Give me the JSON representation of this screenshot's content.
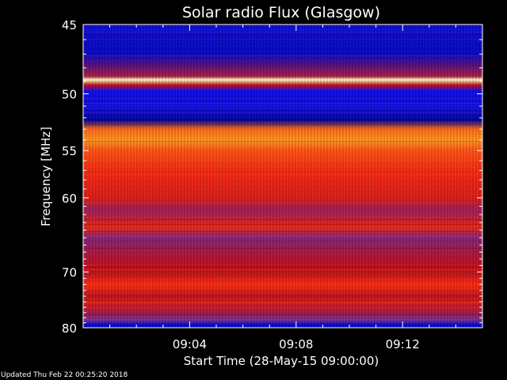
{
  "chart_data": {
    "type": "heatmap",
    "title": "Solar radio Flux (Glasgow)",
    "ylabel": "Frequency [MHz]",
    "xlabel": "Start Time (28-May-15 09:00:00)",
    "ylim": [
      45,
      80
    ],
    "y_scale": "reciprocal",
    "y_ticks": [
      45,
      50,
      55,
      60,
      70,
      80
    ],
    "y_tick_labels": [
      "45",
      "50",
      "55",
      "60",
      "70",
      "80"
    ],
    "x_tick_labels": [
      "09:04",
      "09:08",
      "09:12"
    ],
    "x_ticks_minutes": [
      4,
      8,
      12
    ],
    "xlim_minutes": [
      0,
      15
    ],
    "colormap": [
      "#000066",
      "#1010ff",
      "#7030a0",
      "#c01020",
      "#ff3010",
      "#ffa020",
      "#ffffc0"
    ],
    "band_levels": [
      {
        "mhz": 45.0,
        "level": 0.12
      },
      {
        "mhz": 47.0,
        "level": 0.1
      },
      {
        "mhz": 48.6,
        "level": 0.45
      },
      {
        "mhz": 48.9,
        "level": 1.0
      },
      {
        "mhz": 49.3,
        "level": 0.5
      },
      {
        "mhz": 49.8,
        "level": 0.15
      },
      {
        "mhz": 51.5,
        "level": 0.12
      },
      {
        "mhz": 52.2,
        "level": 0.05
      },
      {
        "mhz": 53.0,
        "level": 0.75
      },
      {
        "mhz": 54.0,
        "level": 0.82
      },
      {
        "mhz": 55.0,
        "level": 0.72
      },
      {
        "mhz": 57.0,
        "level": 0.64
      },
      {
        "mhz": 60.0,
        "level": 0.58
      },
      {
        "mhz": 61.5,
        "level": 0.42
      },
      {
        "mhz": 63.5,
        "level": 0.62
      },
      {
        "mhz": 65.0,
        "level": 0.38
      },
      {
        "mhz": 67.0,
        "level": 0.45
      },
      {
        "mhz": 69.0,
        "level": 0.5
      },
      {
        "mhz": 71.0,
        "level": 0.57
      },
      {
        "mhz": 72.0,
        "level": 0.66
      },
      {
        "mhz": 74.0,
        "level": 0.5
      },
      {
        "mhz": 75.0,
        "level": 0.6
      },
      {
        "mhz": 77.0,
        "level": 0.45
      },
      {
        "mhz": 78.5,
        "level": 0.35
      },
      {
        "mhz": 79.3,
        "level": 0.12
      },
      {
        "mhz": 80.0,
        "level": 0.08
      }
    ]
  },
  "footer": "Updated Thu Feb 22 00:25:20 2018"
}
